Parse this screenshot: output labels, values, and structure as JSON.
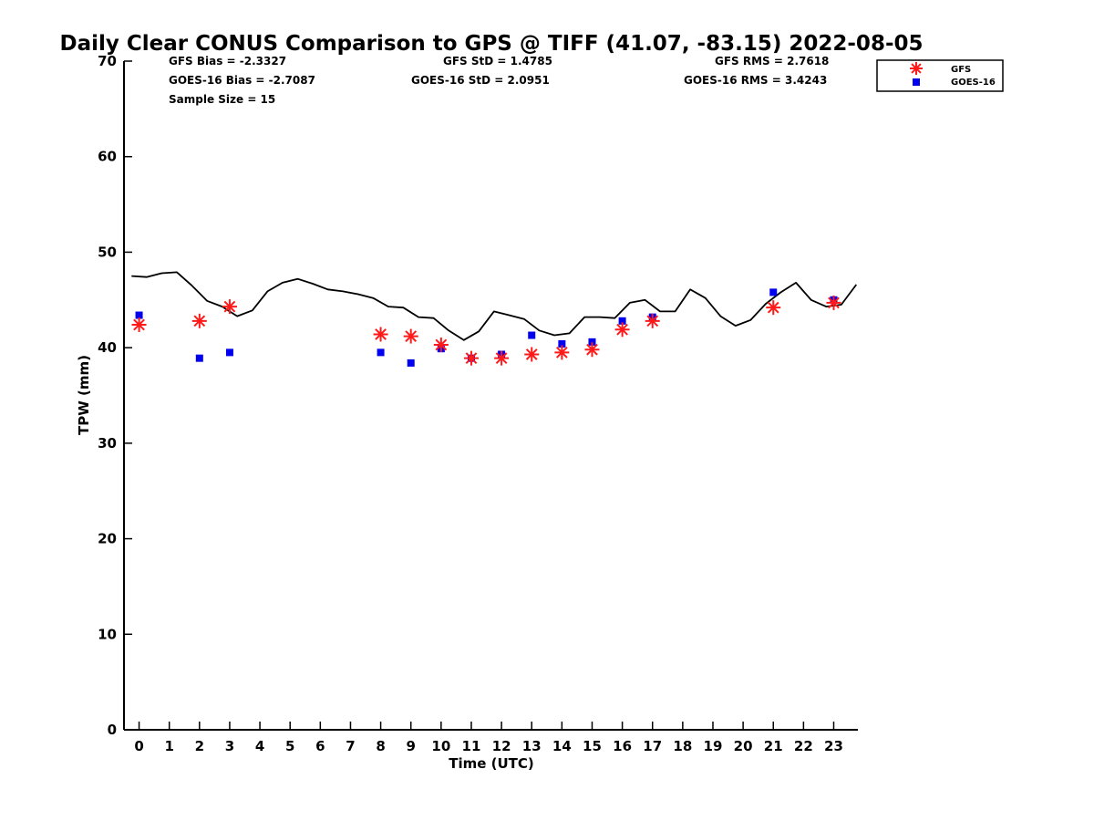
{
  "chart_data": {
    "type": "scatter",
    "title": "Daily Clear CONUS Comparison to GPS @ TIFF (41.07, -83.15) 2022-08-05",
    "xlabel": "Time (UTC)",
    "ylabel": "TPW (mm)",
    "xlim": [
      -0.5,
      23.8
    ],
    "ylim": [
      0,
      70
    ],
    "xticks": [
      0,
      1,
      2,
      3,
      4,
      5,
      6,
      7,
      8,
      9,
      10,
      11,
      12,
      13,
      14,
      15,
      16,
      17,
      18,
      19,
      20,
      21,
      22,
      23
    ],
    "yticks": [
      0,
      10,
      20,
      30,
      40,
      50,
      60,
      70
    ],
    "grid": false,
    "legend_position": "top-right",
    "stats": {
      "gfs_bias": "GFS Bias = -2.3327",
      "goes_bias": "GOES-16 Bias = -2.7087",
      "sample_size": "Sample Size = 15",
      "gfs_std": "GFS StD = 1.4785",
      "goes_std": "GOES-16 StD = 2.0951",
      "gfs_rms": "GFS RMS = 2.7618",
      "goes_rms": "GOES-16 RMS = 3.4243"
    },
    "series": [
      {
        "name": "GPS",
        "type": "line",
        "color": "#000000",
        "x": [
          -0.25,
          0.25,
          0.75,
          1.25,
          1.75,
          2.25,
          2.75,
          3.25,
          3.75,
          4.25,
          4.75,
          5.25,
          5.75,
          6.25,
          6.75,
          7.25,
          7.75,
          8.25,
          8.75,
          9.25,
          9.75,
          10.25,
          10.75,
          11.25,
          11.75,
          12.25,
          12.75,
          13.25,
          13.75,
          14.25,
          14.75,
          15.25,
          15.75,
          16.25,
          16.75,
          17.25,
          17.75,
          18.25,
          18.75,
          19.25,
          19.75,
          20.25,
          20.75,
          21.25,
          21.75,
          22.25,
          22.75,
          23.25,
          23.75
        ],
        "y": [
          47.5,
          47.4,
          47.8,
          47.9,
          46.5,
          44.9,
          44.3,
          43.3,
          43.9,
          45.9,
          46.8,
          47.2,
          46.7,
          46.1,
          45.9,
          45.6,
          45.2,
          44.3,
          44.2,
          43.2,
          43.1,
          41.8,
          40.8,
          41.7,
          43.8,
          43.4,
          43.0,
          41.8,
          41.3,
          41.5,
          43.2,
          43.2,
          43.1,
          44.7,
          45.0,
          43.8,
          43.8,
          46.1,
          45.2,
          43.3,
          42.3,
          42.9,
          44.6,
          45.8,
          46.8,
          45.0,
          44.3,
          44.5,
          46.6
        ]
      },
      {
        "name": "GFS",
        "type": "scatter",
        "marker": "asterisk",
        "color": "#ff1a1a",
        "x": [
          0,
          2,
          3,
          8,
          9,
          10,
          11,
          12,
          13,
          14,
          15,
          16,
          17,
          21,
          23
        ],
        "y": [
          42.4,
          42.8,
          44.3,
          41.4,
          41.2,
          40.3,
          38.9,
          38.9,
          39.3,
          39.5,
          39.8,
          41.9,
          42.8,
          44.2,
          44.7
        ]
      },
      {
        "name": "GOES-16",
        "type": "scatter",
        "marker": "square",
        "color": "#0000ee",
        "x": [
          0,
          2,
          3,
          8,
          9,
          10,
          11,
          12,
          13,
          14,
          15,
          16,
          17,
          21,
          23
        ],
        "y": [
          43.4,
          38.9,
          39.5,
          39.5,
          38.4,
          39.9,
          38.9,
          39.3,
          41.3,
          40.4,
          40.6,
          42.8,
          43.2,
          45.8,
          45.0
        ]
      }
    ]
  }
}
